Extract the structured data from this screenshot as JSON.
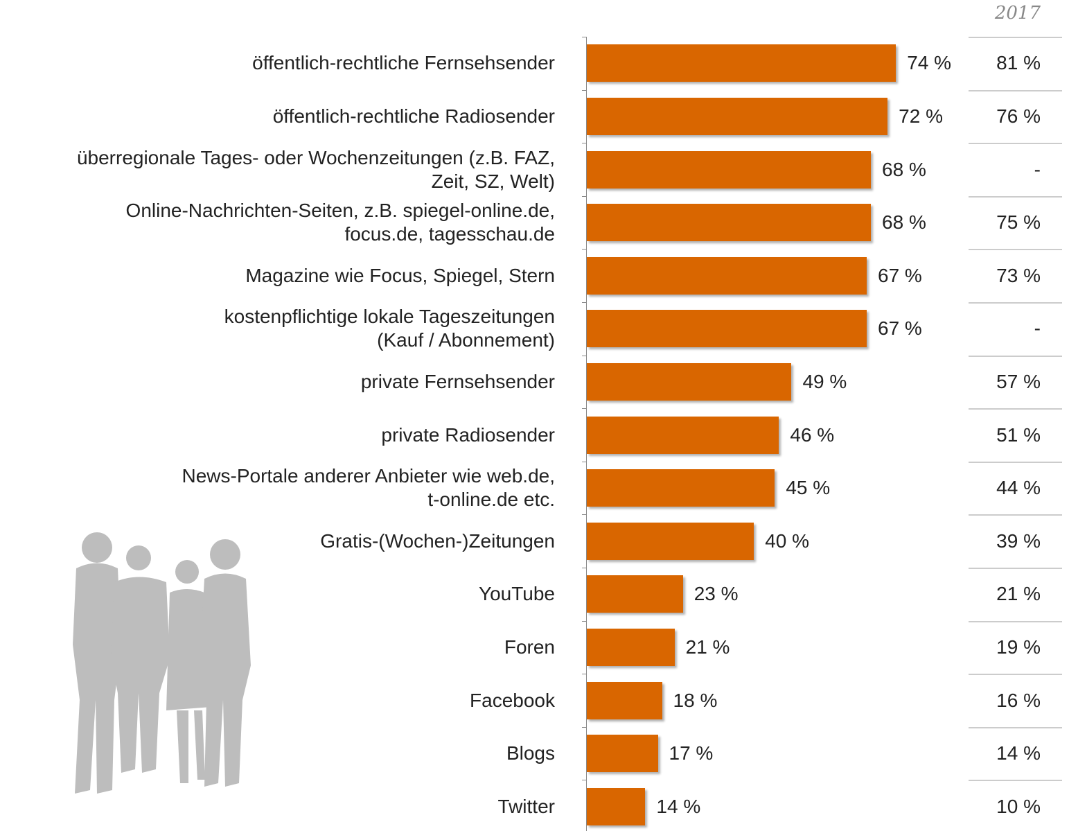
{
  "chart_data": {
    "type": "bar",
    "orientation": "horizontal",
    "color": "#d96600",
    "categories": [
      "öffentlich-rechtliche Fernsehsender",
      "öffentlich-rechtliche Radiosender",
      "überregionale Tages- oder Wochenzeitungen (z.B. FAZ,\nZeit, SZ, Welt)",
      "Online-Nachrichten-Seiten, z.B. spiegel-online.de,\nfocus.de, tagesschau.de",
      "Magazine wie Focus, Spiegel, Stern",
      "kostenpflichtige lokale Tageszeitungen\n(Kauf / Abonnement)",
      "private Fernsehsender",
      "private Radiosender",
      "News-Portale anderer Anbieter wie web.de,\nt-online.de etc.",
      "Gratis-(Wochen-)Zeitungen",
      "YouTube",
      "Foren",
      "Facebook",
      "Blogs",
      "Twitter"
    ],
    "values": [
      74,
      72,
      68,
      68,
      67,
      67,
      49,
      46,
      45,
      40,
      23,
      21,
      18,
      17,
      14
    ],
    "value_labels": [
      "74 %",
      "72 %",
      "68 %",
      "68 %",
      "67 %",
      "67 %",
      "49 %",
      "46 %",
      "45 %",
      "40 %",
      "23 %",
      "21 %",
      "18 %",
      "17 %",
      "14 %"
    ],
    "comparison": {
      "title": "2017",
      "labels": [
        "81 %",
        "76 %",
        "-",
        "75 %",
        "73 %",
        "-",
        "57 %",
        "51 %",
        "44 %",
        "39 %",
        "21 %",
        "19 %",
        "16 %",
        "14 %",
        "10 %"
      ]
    }
  }
}
